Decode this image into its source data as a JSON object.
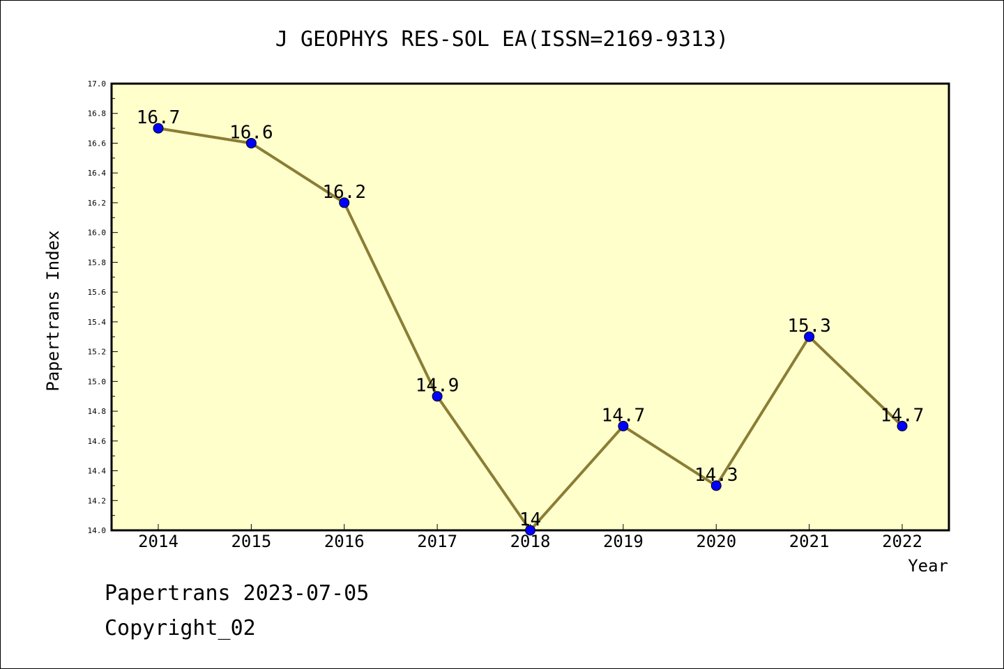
{
  "chart_data": {
    "type": "line",
    "title": "J GEOPHYS RES-SOL EA(ISSN=2169-9313)",
    "xlabel": "Year",
    "ylabel": "Papertrans Index",
    "categories": [
      "2014",
      "2015",
      "2016",
      "2017",
      "2018",
      "2019",
      "2020",
      "2021",
      "2022"
    ],
    "series": [
      {
        "values": [
          16.7,
          16.6,
          16.2,
          14.9,
          14.0,
          14.7,
          14.3,
          15.3,
          14.7
        ],
        "labels": [
          "16.7",
          "16.6",
          "16.2",
          "14.9",
          "14",
          "14.7",
          "14.3",
          "15.3",
          "14.7"
        ]
      }
    ],
    "ylim": [
      14.0,
      17.0
    ],
    "yticks": [
      "14.0",
      "14.2",
      "14.4",
      "14.6",
      "14.8",
      "15.0",
      "15.2",
      "15.4",
      "15.6",
      "15.8",
      "16.0",
      "16.2",
      "16.4",
      "16.6",
      "16.8",
      "17.0"
    ],
    "grid": false,
    "colors": {
      "plot_background": "#ffffcc",
      "line": "#8b7d35",
      "marker": "#0000ff"
    }
  },
  "footer": {
    "source": "Papertrans 2023-07-05",
    "copyright": "Copyright_02"
  }
}
